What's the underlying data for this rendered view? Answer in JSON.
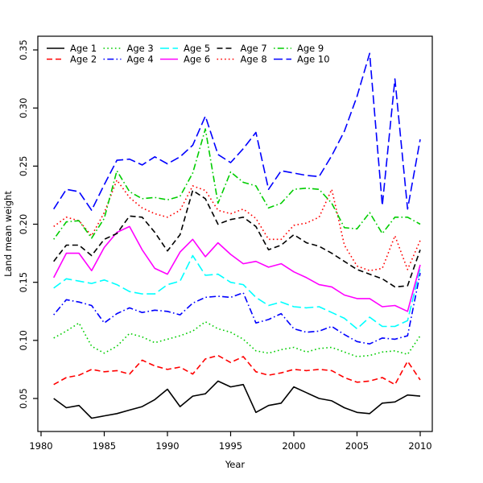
{
  "figure": {
    "background": "#ffffff",
    "axis_color": "#000000"
  },
  "chart_data": {
    "type": "line",
    "title": "",
    "xlabel": "Year",
    "ylabel": "Land mean weight",
    "xlim": [
      1979.8,
      2011.2
    ],
    "ylim": [
      0.03,
      0.355
    ],
    "grid": false,
    "legend_position": "top",
    "x": [
      1981,
      1982,
      1983,
      1984,
      1985,
      1986,
      1987,
      1988,
      1989,
      1990,
      1991,
      1992,
      1993,
      1994,
      1995,
      1996,
      1997,
      1998,
      1999,
      2000,
      2001,
      2002,
      2003,
      2004,
      2005,
      2006,
      2007,
      2008,
      2009,
      2010
    ],
    "xtick_labels": [
      "1980",
      "1985",
      "1990",
      "1995",
      "2000",
      "2005",
      "2010"
    ],
    "xticks": [
      1980,
      1985,
      1990,
      1995,
      2000,
      2005,
      2010
    ],
    "ytick_labels": [
      "0.05",
      "0.10",
      "0.15",
      "0.20",
      "0.25",
      "0.30",
      "0.35"
    ],
    "yticks": [
      0.05,
      0.1,
      0.15,
      0.2,
      0.25,
      0.3,
      0.35
    ],
    "series": [
      {
        "name": "Age 1",
        "color": "#000000",
        "dash": "solid",
        "values": [
          0.05,
          0.042,
          0.044,
          0.033,
          0.035,
          0.037,
          0.04,
          0.043,
          0.049,
          0.058,
          0.043,
          0.052,
          0.054,
          0.065,
          0.06,
          0.062,
          0.038,
          0.044,
          0.046,
          0.06,
          0.055,
          0.05,
          0.048,
          0.042,
          0.038,
          0.037,
          0.046,
          0.047,
          0.053,
          0.052
        ]
      },
      {
        "name": "Age 2",
        "color": "#FF0000",
        "dash": "dashed",
        "values": [
          0.062,
          0.068,
          0.07,
          0.075,
          0.073,
          0.074,
          0.071,
          0.083,
          0.078,
          0.075,
          0.077,
          0.071,
          0.084,
          0.087,
          0.081,
          0.086,
          0.073,
          0.07,
          0.072,
          0.075,
          0.074,
          0.075,
          0.074,
          0.068,
          0.064,
          0.065,
          0.068,
          0.062,
          0.082,
          0.066
        ]
      },
      {
        "name": "Age 3",
        "color": "#00CD00",
        "dash": "dotted",
        "values": [
          0.102,
          0.108,
          0.115,
          0.095,
          0.089,
          0.095,
          0.106,
          0.103,
          0.098,
          0.101,
          0.104,
          0.108,
          0.116,
          0.11,
          0.107,
          0.101,
          0.091,
          0.089,
          0.092,
          0.094,
          0.09,
          0.093,
          0.094,
          0.09,
          0.086,
          0.087,
          0.09,
          0.091,
          0.088,
          0.104
        ]
      },
      {
        "name": "Age 4",
        "color": "#0000FF",
        "dash": "dotdash",
        "values": [
          0.122,
          0.135,
          0.133,
          0.13,
          0.115,
          0.123,
          0.128,
          0.124,
          0.126,
          0.125,
          0.122,
          0.132,
          0.137,
          0.138,
          0.137,
          0.141,
          0.115,
          0.118,
          0.123,
          0.11,
          0.107,
          0.108,
          0.112,
          0.105,
          0.099,
          0.097,
          0.102,
          0.101,
          0.104,
          0.158
        ]
      },
      {
        "name": "Age 5",
        "color": "#00FFFF",
        "dash": "longdash",
        "values": [
          0.145,
          0.153,
          0.151,
          0.149,
          0.152,
          0.148,
          0.142,
          0.14,
          0.14,
          0.148,
          0.151,
          0.173,
          0.156,
          0.157,
          0.15,
          0.148,
          0.137,
          0.13,
          0.133,
          0.129,
          0.128,
          0.129,
          0.124,
          0.119,
          0.11,
          0.12,
          0.112,
          0.112,
          0.117,
          0.162
        ]
      },
      {
        "name": "Age 6",
        "color": "#FF00FF",
        "dash": "solid",
        "values": [
          0.154,
          0.175,
          0.175,
          0.16,
          0.18,
          0.193,
          0.198,
          0.178,
          0.162,
          0.157,
          0.176,
          0.187,
          0.172,
          0.184,
          0.174,
          0.166,
          0.168,
          0.163,
          0.166,
          0.159,
          0.154,
          0.148,
          0.146,
          0.139,
          0.136,
          0.136,
          0.129,
          0.13,
          0.125,
          0.165
        ]
      },
      {
        "name": "Age 7",
        "color": "#000000",
        "dash": "dashed",
        "values": [
          0.168,
          0.182,
          0.182,
          0.173,
          0.187,
          0.192,
          0.207,
          0.206,
          0.193,
          0.177,
          0.191,
          0.229,
          0.222,
          0.2,
          0.204,
          0.206,
          0.198,
          0.178,
          0.182,
          0.191,
          0.184,
          0.181,
          0.175,
          0.168,
          0.161,
          0.157,
          0.153,
          0.146,
          0.147,
          0.178
        ]
      },
      {
        "name": "Age 8",
        "color": "#FF0000",
        "dash": "dotted",
        "values": [
          0.198,
          0.206,
          0.203,
          0.19,
          0.21,
          0.238,
          0.223,
          0.214,
          0.209,
          0.206,
          0.212,
          0.233,
          0.229,
          0.212,
          0.209,
          0.213,
          0.205,
          0.187,
          0.187,
          0.199,
          0.201,
          0.206,
          0.23,
          0.182,
          0.164,
          0.16,
          0.162,
          0.19,
          0.161,
          0.186
        ]
      },
      {
        "name": "Age 9",
        "color": "#00CD00",
        "dash": "dotdash",
        "values": [
          0.187,
          0.202,
          0.203,
          0.188,
          0.205,
          0.246,
          0.228,
          0.222,
          0.223,
          0.221,
          0.224,
          0.244,
          0.282,
          0.218,
          0.245,
          0.236,
          0.233,
          0.214,
          0.218,
          0.23,
          0.231,
          0.23,
          0.218,
          0.197,
          0.196,
          0.21,
          0.192,
          0.206,
          0.206,
          0.2
        ]
      },
      {
        "name": "Age 10",
        "color": "#0000FF",
        "dash": "longdash",
        "values": [
          0.213,
          0.23,
          0.228,
          0.212,
          0.234,
          0.255,
          0.256,
          0.251,
          0.258,
          0.252,
          0.258,
          0.268,
          0.293,
          0.26,
          0.253,
          0.265,
          0.279,
          0.23,
          0.246,
          0.244,
          0.242,
          0.241,
          0.259,
          0.28,
          0.31,
          0.347,
          0.216,
          0.325,
          0.213,
          0.273
        ]
      }
    ],
    "legend": [
      "Age 1",
      "Age 2",
      "Age 3",
      "Age 4",
      "Age 5",
      "Age 6",
      "Age 7",
      "Age 8",
      "Age 9",
      "Age 10"
    ]
  }
}
